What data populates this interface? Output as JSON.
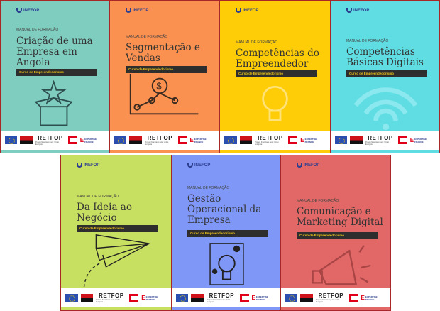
{
  "logo": "INEFOP",
  "footer": {
    "retfop": "RETFOP",
    "funding": "Projeto financiado pela: União Europeia",
    "expertise": "EXPERTISE FRANCE"
  },
  "covers": [
    {
      "label": "MANUAL DE FORMAÇÃO",
      "title": "Criação de uma\nEmpresa em\nAngola",
      "course": "Curso de Empreendedorismo",
      "color": "#7fcdbf",
      "icon": "gift-box-star-icon"
    },
    {
      "label": "MANUAL DE FORMAÇÃO",
      "title": "Segmentação e\nVendas",
      "course": "Curso de Empreendedorismo",
      "color": "#fa9150",
      "icon": "dollar-growth-chart-icon"
    },
    {
      "label": "MANUAL DE FORMAÇÃO",
      "title": "Competências do\nEmpreendedor",
      "course": "Curso de Empreendedorismo",
      "color": "#fecd07",
      "icon": "lightbulb-icon"
    },
    {
      "label": "MANUAL DE FORMAÇÃO",
      "title": "Competências\nBásicas Digitais",
      "course": "Curso de Empreendedorismo",
      "color": "#5fdde3",
      "icon": "wifi-icon"
    },
    {
      "label": "MANUAL DE FORMAÇÃO",
      "title": "Da Ideia ao\nNegócio",
      "course": "Curso de Empreendedorismo",
      "color": "#c8e062",
      "icon": "paper-plane-icon"
    },
    {
      "label": "MANUAL DE FORMAÇÃO",
      "title": "Gestão\nOperacional da\nEmpresa",
      "course": "Curso de Empreendedorismo",
      "color": "#7f97f7",
      "icon": "lightbulb-gears-icon"
    },
    {
      "label": "MANUAL DE FORMAÇÃO",
      "title": "Comunicação e\nMarketing Digital",
      "course": "Curso de Empreendedorismo",
      "color": "#e26868",
      "icon": "megaphone-icon"
    }
  ]
}
